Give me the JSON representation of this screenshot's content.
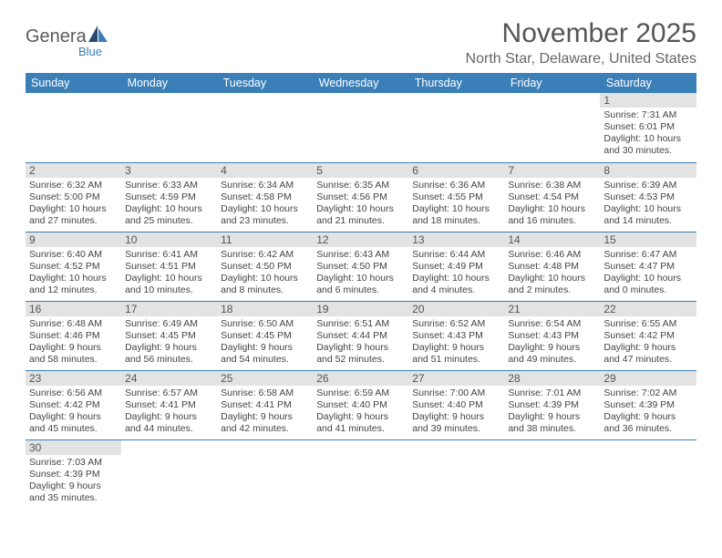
{
  "logo": {
    "brand_a": "Genera",
    "brand_b": "Blue"
  },
  "title": "November 2025",
  "location": "North Star, Delaware, United States",
  "colors": {
    "header_bg": "#3b7fb8",
    "daynum_bg": "#e3e3e3",
    "text": "#444444",
    "rule": "#3b7fb8"
  },
  "day_headers": [
    "Sunday",
    "Monday",
    "Tuesday",
    "Wednesday",
    "Thursday",
    "Friday",
    "Saturday"
  ],
  "weeks": [
    [
      null,
      null,
      null,
      null,
      null,
      null,
      {
        "n": "1",
        "sunrise": "Sunrise: 7:31 AM",
        "sunset": "Sunset: 6:01 PM",
        "day1": "Daylight: 10 hours",
        "day2": "and 30 minutes."
      }
    ],
    [
      {
        "n": "2",
        "sunrise": "Sunrise: 6:32 AM",
        "sunset": "Sunset: 5:00 PM",
        "day1": "Daylight: 10 hours",
        "day2": "and 27 minutes."
      },
      {
        "n": "3",
        "sunrise": "Sunrise: 6:33 AM",
        "sunset": "Sunset: 4:59 PM",
        "day1": "Daylight: 10 hours",
        "day2": "and 25 minutes."
      },
      {
        "n": "4",
        "sunrise": "Sunrise: 6:34 AM",
        "sunset": "Sunset: 4:58 PM",
        "day1": "Daylight: 10 hours",
        "day2": "and 23 minutes."
      },
      {
        "n": "5",
        "sunrise": "Sunrise: 6:35 AM",
        "sunset": "Sunset: 4:56 PM",
        "day1": "Daylight: 10 hours",
        "day2": "and 21 minutes."
      },
      {
        "n": "6",
        "sunrise": "Sunrise: 6:36 AM",
        "sunset": "Sunset: 4:55 PM",
        "day1": "Daylight: 10 hours",
        "day2": "and 18 minutes."
      },
      {
        "n": "7",
        "sunrise": "Sunrise: 6:38 AM",
        "sunset": "Sunset: 4:54 PM",
        "day1": "Daylight: 10 hours",
        "day2": "and 16 minutes."
      },
      {
        "n": "8",
        "sunrise": "Sunrise: 6:39 AM",
        "sunset": "Sunset: 4:53 PM",
        "day1": "Daylight: 10 hours",
        "day2": "and 14 minutes."
      }
    ],
    [
      {
        "n": "9",
        "sunrise": "Sunrise: 6:40 AM",
        "sunset": "Sunset: 4:52 PM",
        "day1": "Daylight: 10 hours",
        "day2": "and 12 minutes."
      },
      {
        "n": "10",
        "sunrise": "Sunrise: 6:41 AM",
        "sunset": "Sunset: 4:51 PM",
        "day1": "Daylight: 10 hours",
        "day2": "and 10 minutes."
      },
      {
        "n": "11",
        "sunrise": "Sunrise: 6:42 AM",
        "sunset": "Sunset: 4:50 PM",
        "day1": "Daylight: 10 hours",
        "day2": "and 8 minutes."
      },
      {
        "n": "12",
        "sunrise": "Sunrise: 6:43 AM",
        "sunset": "Sunset: 4:50 PM",
        "day1": "Daylight: 10 hours",
        "day2": "and 6 minutes."
      },
      {
        "n": "13",
        "sunrise": "Sunrise: 6:44 AM",
        "sunset": "Sunset: 4:49 PM",
        "day1": "Daylight: 10 hours",
        "day2": "and 4 minutes."
      },
      {
        "n": "14",
        "sunrise": "Sunrise: 6:46 AM",
        "sunset": "Sunset: 4:48 PM",
        "day1": "Daylight: 10 hours",
        "day2": "and 2 minutes."
      },
      {
        "n": "15",
        "sunrise": "Sunrise: 6:47 AM",
        "sunset": "Sunset: 4:47 PM",
        "day1": "Daylight: 10 hours",
        "day2": "and 0 minutes."
      }
    ],
    [
      {
        "n": "16",
        "sunrise": "Sunrise: 6:48 AM",
        "sunset": "Sunset: 4:46 PM",
        "day1": "Daylight: 9 hours",
        "day2": "and 58 minutes."
      },
      {
        "n": "17",
        "sunrise": "Sunrise: 6:49 AM",
        "sunset": "Sunset: 4:45 PM",
        "day1": "Daylight: 9 hours",
        "day2": "and 56 minutes."
      },
      {
        "n": "18",
        "sunrise": "Sunrise: 6:50 AM",
        "sunset": "Sunset: 4:45 PM",
        "day1": "Daylight: 9 hours",
        "day2": "and 54 minutes."
      },
      {
        "n": "19",
        "sunrise": "Sunrise: 6:51 AM",
        "sunset": "Sunset: 4:44 PM",
        "day1": "Daylight: 9 hours",
        "day2": "and 52 minutes."
      },
      {
        "n": "20",
        "sunrise": "Sunrise: 6:52 AM",
        "sunset": "Sunset: 4:43 PM",
        "day1": "Daylight: 9 hours",
        "day2": "and 51 minutes."
      },
      {
        "n": "21",
        "sunrise": "Sunrise: 6:54 AM",
        "sunset": "Sunset: 4:43 PM",
        "day1": "Daylight: 9 hours",
        "day2": "and 49 minutes."
      },
      {
        "n": "22",
        "sunrise": "Sunrise: 6:55 AM",
        "sunset": "Sunset: 4:42 PM",
        "day1": "Daylight: 9 hours",
        "day2": "and 47 minutes."
      }
    ],
    [
      {
        "n": "23",
        "sunrise": "Sunrise: 6:56 AM",
        "sunset": "Sunset: 4:42 PM",
        "day1": "Daylight: 9 hours",
        "day2": "and 45 minutes."
      },
      {
        "n": "24",
        "sunrise": "Sunrise: 6:57 AM",
        "sunset": "Sunset: 4:41 PM",
        "day1": "Daylight: 9 hours",
        "day2": "and 44 minutes."
      },
      {
        "n": "25",
        "sunrise": "Sunrise: 6:58 AM",
        "sunset": "Sunset: 4:41 PM",
        "day1": "Daylight: 9 hours",
        "day2": "and 42 minutes."
      },
      {
        "n": "26",
        "sunrise": "Sunrise: 6:59 AM",
        "sunset": "Sunset: 4:40 PM",
        "day1": "Daylight: 9 hours",
        "day2": "and 41 minutes."
      },
      {
        "n": "27",
        "sunrise": "Sunrise: 7:00 AM",
        "sunset": "Sunset: 4:40 PM",
        "day1": "Daylight: 9 hours",
        "day2": "and 39 minutes."
      },
      {
        "n": "28",
        "sunrise": "Sunrise: 7:01 AM",
        "sunset": "Sunset: 4:39 PM",
        "day1": "Daylight: 9 hours",
        "day2": "and 38 minutes."
      },
      {
        "n": "29",
        "sunrise": "Sunrise: 7:02 AM",
        "sunset": "Sunset: 4:39 PM",
        "day1": "Daylight: 9 hours",
        "day2": "and 36 minutes."
      }
    ],
    [
      {
        "n": "30",
        "sunrise": "Sunrise: 7:03 AM",
        "sunset": "Sunset: 4:39 PM",
        "day1": "Daylight: 9 hours",
        "day2": "and 35 minutes."
      },
      null,
      null,
      null,
      null,
      null,
      null
    ]
  ]
}
